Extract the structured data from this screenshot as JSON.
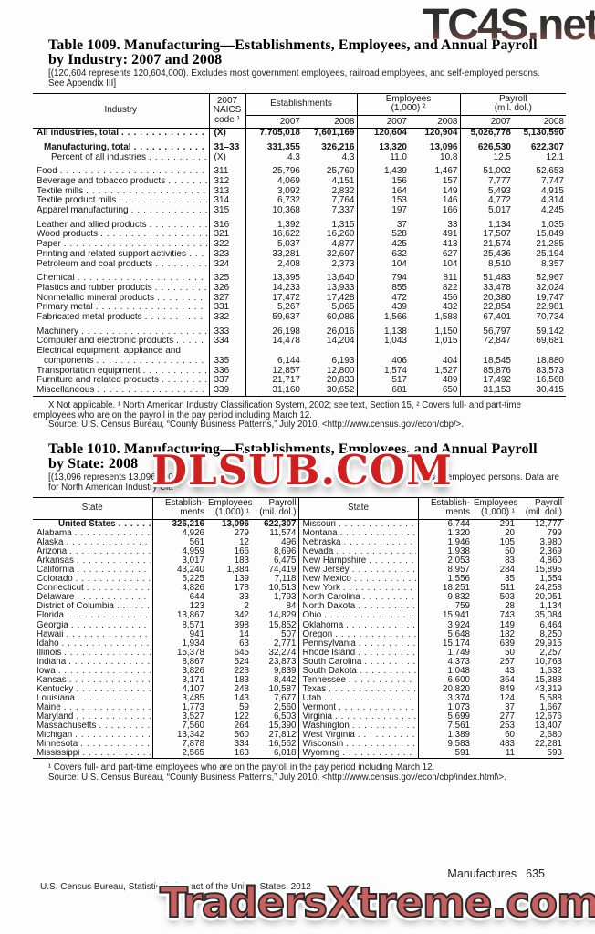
{
  "watermarks": {
    "top": "TC4S.net",
    "middle": "DLSUB.COM",
    "bottom": "TradersXtreme.com"
  },
  "table1009": {
    "title": "Table 1009. Manufacturing—Establishments, Employees, and Annual Payroll\nby Industry: 2007 and 2008",
    "note": "[(120,604 represents 120,604,000). Excludes most government employees, railroad employees, and self-employed persons.\nSee Appendix III]",
    "headers": {
      "industry": "Industry",
      "naics": "2007\nNAICS\ncode ¹",
      "establishments": "Establishments",
      "employees": "Employees\n(1,000) ²",
      "payroll": "Payroll\n(mil. dol.)",
      "year_2007": "2007",
      "year_2008": "2008"
    },
    "rows": [
      {
        "label": "All industries, total",
        "bold": true,
        "naics": "(X)",
        "values": [
          "7,705,018",
          "7,601,169",
          "120,604",
          "120,904",
          "5,026,778",
          "5,130,590"
        ]
      },
      {
        "label": "Manufacturing, total",
        "bold": true,
        "gap": true,
        "indent": 1,
        "naics": "31–33",
        "values": [
          "331,355",
          "326,216",
          "13,320",
          "13,096",
          "626,530",
          "622,307"
        ]
      },
      {
        "label": "Percent of all industries",
        "indent": 2,
        "naics": "(X)",
        "values": [
          "4.3",
          "4.3",
          "11.0",
          "10.8",
          "12.5",
          "12.1"
        ]
      },
      {
        "label": "Food",
        "gap": true,
        "naics": "311",
        "values": [
          "25,796",
          "25,760",
          "1,439",
          "1,467",
          "51,002",
          "52,653"
        ]
      },
      {
        "label": "Beverage and tobacco products",
        "naics": "312",
        "values": [
          "4,069",
          "4,151",
          "156",
          "157",
          "7,777",
          "7,747"
        ]
      },
      {
        "label": "Textile mills",
        "naics": "313",
        "values": [
          "3,092",
          "2,832",
          "164",
          "149",
          "5,493",
          "4,915"
        ]
      },
      {
        "label": "Textile product mills",
        "naics": "314",
        "values": [
          "6,732",
          "7,764",
          "153",
          "146",
          "4,772",
          "4,314"
        ]
      },
      {
        "label": "Apparel manufacturing",
        "naics": "315",
        "values": [
          "10,368",
          "7,337",
          "197",
          "166",
          "5,017",
          "4,245"
        ]
      },
      {
        "label": "Leather and allied products",
        "gap": true,
        "naics": "316",
        "values": [
          "1,392",
          "1,315",
          "37",
          "33",
          "1,134",
          "1,035"
        ]
      },
      {
        "label": "Wood products",
        "naics": "321",
        "values": [
          "16,622",
          "16,260",
          "528",
          "491",
          "17,507",
          "15,849"
        ]
      },
      {
        "label": "Paper",
        "naics": "322",
        "values": [
          "5,037",
          "4,877",
          "425",
          "413",
          "21,574",
          "21,285"
        ]
      },
      {
        "label": "Printing and related support activities",
        "naics": "323",
        "values": [
          "33,281",
          "32,697",
          "632",
          "627",
          "25,436",
          "25,194"
        ]
      },
      {
        "label": "Petroleum and coal products",
        "naics": "324",
        "values": [
          "2,408",
          "2,373",
          "104",
          "104",
          "8,510",
          "8,357"
        ]
      },
      {
        "label": "Chemical",
        "gap": true,
        "naics": "325",
        "values": [
          "13,395",
          "13,640",
          "794",
          "811",
          "51,483",
          "52,967"
        ]
      },
      {
        "label": "Plastics and rubber products",
        "naics": "326",
        "values": [
          "14,233",
          "13,933",
          "855",
          "822",
          "33,478",
          "32,024"
        ]
      },
      {
        "label": "Nonmetallic mineral products",
        "naics": "327",
        "values": [
          "17,472",
          "17,428",
          "472",
          "456",
          "20,380",
          "19,747"
        ]
      },
      {
        "label": "Primary metal",
        "naics": "331",
        "values": [
          "5,267",
          "5,065",
          "439",
          "432",
          "22,854",
          "22,981"
        ]
      },
      {
        "label": "Fabricated metal products",
        "naics": "332",
        "values": [
          "59,637",
          "60,086",
          "1,566",
          "1,588",
          "67,401",
          "70,734"
        ]
      },
      {
        "label": "Machinery",
        "gap": true,
        "naics": "333",
        "values": [
          "26,198",
          "26,016",
          "1,138",
          "1,150",
          "56,797",
          "59,142"
        ]
      },
      {
        "label": "Computer and electronic products",
        "naics": "334",
        "values": [
          "14,478",
          "14,204",
          "1,043",
          "1,015",
          "72,847",
          "69,681"
        ]
      },
      {
        "label": "Electrical equipment, appliance and",
        "no_dots": true,
        "naics": "",
        "values": [
          "",
          "",
          "",
          "",
          "",
          ""
        ]
      },
      {
        "label": "components",
        "indent": 1,
        "naics": "335",
        "values": [
          "6,144",
          "6,193",
          "406",
          "404",
          "18,545",
          "18,880"
        ]
      },
      {
        "label": "Transportation equipment",
        "naics": "336",
        "values": [
          "12,857",
          "12,800",
          "1,574",
          "1,527",
          "85,876",
          "83,573"
        ]
      },
      {
        "label": "Furniture and related products",
        "naics": "337",
        "values": [
          "21,717",
          "20,833",
          "517",
          "489",
          "17,492",
          "16,568"
        ]
      },
      {
        "label": "Miscellaneous",
        "naics": "339",
        "values": [
          "31,160",
          "30,652",
          "681",
          "650",
          "31,153",
          "30,415"
        ]
      }
    ],
    "footnotes": [
      "X Not applicable. ¹ North American Industry Classification System, 2002; see text, Section 15, ² Covers full- and part-time",
      "employees who are on the payroll in the pay period including March 12.",
      "Source: U.S. Census Bureau, “County Business Patterns,” July 2010, <http://www.census.gov/econ/cbp/>."
    ]
  },
  "table1010": {
    "title": "Table 1010. Manufacturing—Establishments, Employees, and Annual Payroll\nby State: 2008",
    "note_left": "[(13,096 represents 13,096,000)",
    "note_right": "self-employed persons. Data are",
    "note_line2": "for North American Industry Cla",
    "headers": {
      "state": "State",
      "establishments": "Establish-\nments",
      "employees": "Employees\n(1,000) ¹",
      "payroll": "Payroll\n(mil. dol.)"
    },
    "left_rows": [
      {
        "state": "United States",
        "bold": true,
        "est": "326,216",
        "emp": "13,096",
        "pay": "622,307"
      },
      {
        "state": "Alabama",
        "est": "4,926",
        "emp": "279",
        "pay": "11,574"
      },
      {
        "state": "Alaska",
        "est": "561",
        "emp": "12",
        "pay": "496"
      },
      {
        "state": "Arizona",
        "est": "4,959",
        "emp": "166",
        "pay": "8,696"
      },
      {
        "state": "Arkansas",
        "est": "3,017",
        "emp": "183",
        "pay": "6,475"
      },
      {
        "state": "California",
        "est": "43,240",
        "emp": "1,384",
        "pay": "74,419"
      },
      {
        "state": "Colorado",
        "est": "5,225",
        "emp": "139",
        "pay": "7,118"
      },
      {
        "state": "Connecticut",
        "est": "4,826",
        "emp": "178",
        "pay": "10,513"
      },
      {
        "state": "Delaware",
        "est": "644",
        "emp": "33",
        "pay": "1,793"
      },
      {
        "state": "District of Columbia",
        "est": "123",
        "emp": "2",
        "pay": "84"
      },
      {
        "state": "Florida",
        "est": "13,867",
        "emp": "342",
        "pay": "14,829"
      },
      {
        "state": "Georgia",
        "est": "8,571",
        "emp": "398",
        "pay": "15,852"
      },
      {
        "state": "Hawaii",
        "est": "941",
        "emp": "14",
        "pay": "507"
      },
      {
        "state": "Idaho",
        "est": "1,934",
        "emp": "63",
        "pay": "2,771"
      },
      {
        "state": "Illinois",
        "est": "15,378",
        "emp": "645",
        "pay": "32,274"
      },
      {
        "state": "Indiana",
        "est": "8,867",
        "emp": "524",
        "pay": "23,873"
      },
      {
        "state": "Iowa",
        "est": "3,826",
        "emp": "228",
        "pay": "9,839"
      },
      {
        "state": "Kansas",
        "est": "3,171",
        "emp": "183",
        "pay": "8,442"
      },
      {
        "state": "Kentucky",
        "est": "4,107",
        "emp": "248",
        "pay": "10,587"
      },
      {
        "state": "Louisiana",
        "est": "3,485",
        "emp": "143",
        "pay": "7,677"
      },
      {
        "state": "Maine",
        "est": "1,773",
        "emp": "59",
        "pay": "2,560"
      },
      {
        "state": "Maryland",
        "est": "3,527",
        "emp": "122",
        "pay": "6,503"
      },
      {
        "state": "Massachusetts",
        "est": "7,560",
        "emp": "264",
        "pay": "15,390"
      },
      {
        "state": "Michigan",
        "est": "13,342",
        "emp": "560",
        "pay": "27,812"
      },
      {
        "state": "Minnesota",
        "est": "7,878",
        "emp": "334",
        "pay": "16,562"
      },
      {
        "state": "Mississippi",
        "est": "2,565",
        "emp": "163",
        "pay": "6,018"
      }
    ],
    "right_rows": [
      {
        "state": "Missouri",
        "est": "6,744",
        "emp": "291",
        "pay": "12,777"
      },
      {
        "state": "Montana",
        "est": "1,320",
        "emp": "20",
        "pay": "799"
      },
      {
        "state": "Nebraska",
        "est": "1,946",
        "emp": "105",
        "pay": "3,980"
      },
      {
        "state": "Nevada",
        "est": "1,938",
        "emp": "50",
        "pay": "2,369"
      },
      {
        "state": "New Hampshire",
        "est": "2,053",
        "emp": "83",
        "pay": "4,860"
      },
      {
        "state": "New Jersey",
        "est": "8,957",
        "emp": "284",
        "pay": "15,895"
      },
      {
        "state": "New Mexico",
        "est": "1,556",
        "emp": "35",
        "pay": "1,554"
      },
      {
        "state": "New York",
        "est": "18,251",
        "emp": "511",
        "pay": "24,258"
      },
      {
        "state": "North Carolina",
        "est": "9,832",
        "emp": "503",
        "pay": "20,051"
      },
      {
        "state": "North Dakota",
        "est": "759",
        "emp": "28",
        "pay": "1,134"
      },
      {
        "state": "Ohio",
        "est": "15,941",
        "emp": "743",
        "pay": "35,084"
      },
      {
        "state": "Oklahoma",
        "est": "3,924",
        "emp": "149",
        "pay": "6,464"
      },
      {
        "state": "Oregon",
        "est": "5,648",
        "emp": "182",
        "pay": "8,250"
      },
      {
        "state": "Pennsylvania",
        "est": "15,174",
        "emp": "639",
        "pay": "29,915"
      },
      {
        "state": "Rhode Island",
        "est": "1,749",
        "emp": "50",
        "pay": "2,257"
      },
      {
        "state": "South Carolina",
        "est": "4,373",
        "emp": "257",
        "pay": "10,763"
      },
      {
        "state": "South Dakota",
        "est": "1,048",
        "emp": "43",
        "pay": "1,632"
      },
      {
        "state": "Tennessee",
        "est": "6,600",
        "emp": "364",
        "pay": "15,388"
      },
      {
        "state": "Texas",
        "est": "20,820",
        "emp": "849",
        "pay": "43,319"
      },
      {
        "state": "Utah",
        "est": "3,374",
        "emp": "124",
        "pay": "5,588"
      },
      {
        "state": "Vermont",
        "est": "1,073",
        "emp": "37",
        "pay": "1,667"
      },
      {
        "state": "Virginia",
        "est": "5,699",
        "emp": "277",
        "pay": "12,676"
      },
      {
        "state": "Washington",
        "est": "7,561",
        "emp": "253",
        "pay": "13,407"
      },
      {
        "state": "West Virginia",
        "est": "1,389",
        "emp": "60",
        "pay": "2,680"
      },
      {
        "state": "Wisconsin",
        "est": "9,583",
        "emp": "483",
        "pay": "22,281"
      },
      {
        "state": "Wyoming",
        "est": "591",
        "emp": "11",
        "pay": "593"
      }
    ],
    "footnotes": [
      "¹ Covers full- and part-time employees who are on the payroll in the pay period including March 12.",
      "Source: U.S. Census Bureau, “County Business Patterns,” July 2010, <http://www.census.gov/econ/cbp/index.html\\>."
    ]
  },
  "footer": {
    "page_label": "Manufactures",
    "page_number": "635",
    "source_line": "U.S. Census Bureau, Statistical Abstract of the United States: 2012"
  }
}
